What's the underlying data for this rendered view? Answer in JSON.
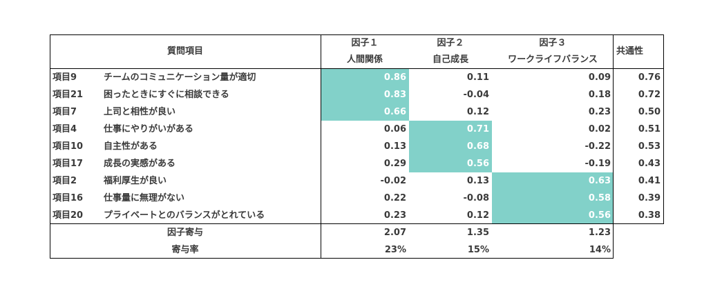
{
  "header": {
    "item_title": "質問項目",
    "factors": [
      {
        "label": "因子１",
        "name": "人間関係"
      },
      {
        "label": "因子２",
        "name": "自己成長"
      },
      {
        "label": "因子３",
        "name": "ワークライフバランス"
      }
    ],
    "communality_title": "共通性"
  },
  "rows": [
    {
      "id": "項目9",
      "text": "チームのコミュニケーション量が適切",
      "f1": "0.86",
      "f2": "0.11",
      "f3": "0.09",
      "comm": "0.76",
      "highlight": 1
    },
    {
      "id": "項目21",
      "text": "困ったときにすぐに相談できる",
      "f1": "0.83",
      "f2": "-0.04",
      "f3": "0.18",
      "comm": "0.72",
      "highlight": 1
    },
    {
      "id": "項目7",
      "text": "上司と相性が良い",
      "f1": "0.66",
      "f2": "0.12",
      "f3": "0.23",
      "comm": "0.50",
      "highlight": 1
    },
    {
      "id": "項目4",
      "text": "仕事にやりがいがある",
      "f1": "0.06",
      "f2": "0.71",
      "f3": "0.02",
      "comm": "0.51",
      "highlight": 2
    },
    {
      "id": "項目10",
      "text": "自主性がある",
      "f1": "0.13",
      "f2": "0.68",
      "f3": "-0.22",
      "comm": "0.53",
      "highlight": 2
    },
    {
      "id": "項目17",
      "text": "成長の実感がある",
      "f1": "0.29",
      "f2": "0.56",
      "f3": "-0.19",
      "comm": "0.43",
      "highlight": 2
    },
    {
      "id": "項目2",
      "text": "福利厚生が良い",
      "f1": "-0.02",
      "f2": "0.13",
      "f3": "0.63",
      "comm": "0.41",
      "highlight": 3
    },
    {
      "id": "項目16",
      "text": "仕事量に無理がない",
      "f1": "0.22",
      "f2": "-0.08",
      "f3": "0.58",
      "comm": "0.39",
      "highlight": 3
    },
    {
      "id": "項目20",
      "text": "プライベートとのバランスがとれている",
      "f1": "0.23",
      "f2": "0.12",
      "f3": "0.56",
      "comm": "0.38",
      "highlight": 3
    }
  ],
  "footer": {
    "contribution_label": "因子寄与",
    "contribution": [
      "2.07",
      "1.35",
      "1.23"
    ],
    "ratio_label": "寄与率",
    "ratio": [
      "23%",
      "15%",
      "14%"
    ]
  },
  "colors": {
    "highlight": "#82d1c9",
    "text": "#3a3a3a"
  }
}
